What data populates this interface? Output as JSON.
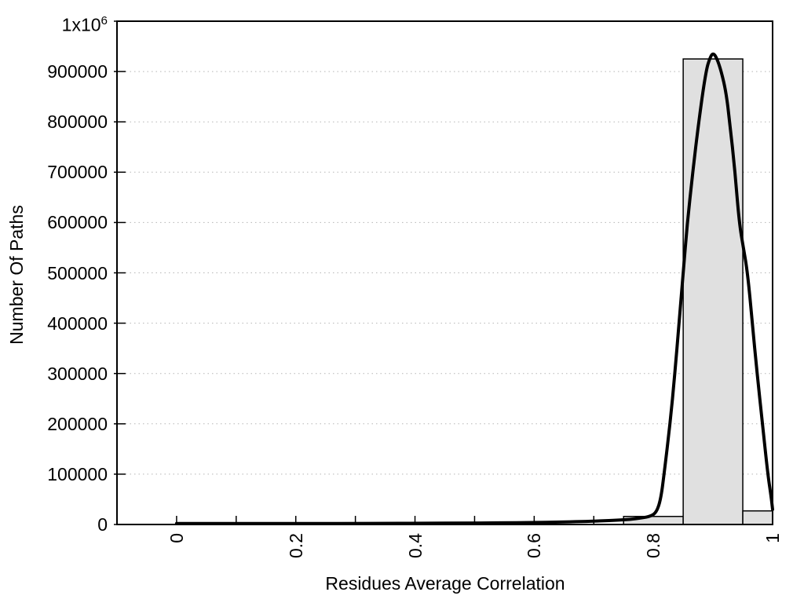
{
  "chart_data": {
    "type": "histogram",
    "xlabel": "Residues Average Correlation",
    "ylabel": "Number Of Paths",
    "xlim": [
      -0.1,
      1.0
    ],
    "ylim": [
      0,
      1000000
    ],
    "x_ticks": {
      "values": [
        0,
        0.1,
        0.2,
        0.3,
        0.4,
        0.5,
        0.6,
        0.7,
        0.8,
        0.9,
        1.0
      ],
      "labeled_values": [
        0,
        0.2,
        0.4,
        0.6,
        0.8,
        1.0
      ],
      "labels": [
        "0",
        "0.2",
        "0.4",
        "0.6",
        "0.8",
        "1"
      ]
    },
    "y_ticks": {
      "values": [
        0,
        100000,
        200000,
        300000,
        400000,
        500000,
        600000,
        700000,
        800000,
        900000,
        1000000
      ],
      "labels": [
        "0",
        "100000",
        "200000",
        "300000",
        "400000",
        "500000",
        "600000",
        "700000",
        "800000",
        "900000",
        "1x10^6"
      ]
    },
    "grid": {
      "horizontal": "dotted",
      "vertical": "none",
      "color": "#b5b5b5"
    },
    "axis_color": "#000000",
    "series": [
      {
        "name": "path-count-histogram",
        "type": "bar",
        "fill": "#e0e0e0",
        "border": "#000000",
        "bins": [
          {
            "from": 0.75,
            "to": 0.85,
            "count": 16000
          },
          {
            "from": 0.85,
            "to": 0.95,
            "count": 925000
          },
          {
            "from": 0.95,
            "to": 1.0,
            "count": 27000
          }
        ]
      },
      {
        "name": "fitted-distribution-curve",
        "type": "line",
        "color": "#000000",
        "width": 4,
        "points": [
          [
            0.0,
            2000
          ],
          [
            0.06,
            2000
          ],
          [
            0.12,
            2000
          ],
          [
            0.18,
            2000
          ],
          [
            0.24,
            2000
          ],
          [
            0.3,
            2100
          ],
          [
            0.36,
            2300
          ],
          [
            0.42,
            2500
          ],
          [
            0.48,
            2800
          ],
          [
            0.54,
            3200
          ],
          [
            0.6,
            4000
          ],
          [
            0.64,
            4800
          ],
          [
            0.68,
            5800
          ],
          [
            0.71,
            7000
          ],
          [
            0.74,
            8600
          ],
          [
            0.76,
            10000
          ],
          [
            0.78,
            13000
          ],
          [
            0.795,
            16000
          ],
          [
            0.805,
            24000
          ],
          [
            0.812,
            48000
          ],
          [
            0.818,
            100000
          ],
          [
            0.828,
            200000
          ],
          [
            0.836,
            300000
          ],
          [
            0.843,
            400000
          ],
          [
            0.85,
            500000
          ],
          [
            0.857,
            600000
          ],
          [
            0.866,
            700000
          ],
          [
            0.876,
            800000
          ],
          [
            0.888,
            900000
          ],
          [
            0.895,
            928000
          ],
          [
            0.9,
            937000
          ],
          [
            0.906,
            928000
          ],
          [
            0.914,
            900000
          ],
          [
            0.922,
            858000
          ],
          [
            0.928,
            800000
          ],
          [
            0.937,
            700000
          ],
          [
            0.944,
            600000
          ],
          [
            0.951,
            550000
          ],
          [
            0.958,
            500000
          ],
          [
            0.966,
            400000
          ],
          [
            0.974,
            300000
          ],
          [
            0.983,
            200000
          ],
          [
            0.992,
            100000
          ],
          [
            0.997,
            60000
          ],
          [
            1.0,
            30000
          ]
        ]
      }
    ]
  }
}
